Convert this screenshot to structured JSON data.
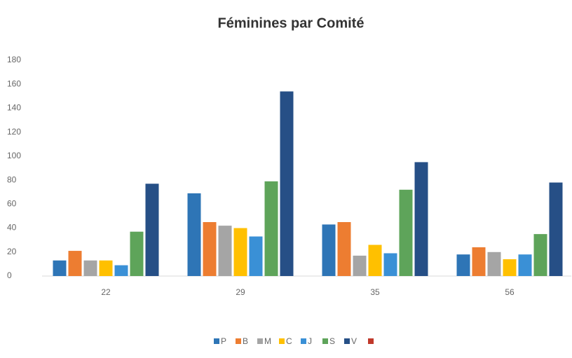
{
  "chart_data": {
    "type": "bar",
    "title": "Féminines par Comité",
    "categories": [
      "22",
      "29",
      "35",
      "56"
    ],
    "series": [
      {
        "name": "P",
        "color": "#2e75b6",
        "values": [
          13,
          69,
          43,
          18
        ]
      },
      {
        "name": "B",
        "color": "#ed7d31",
        "values": [
          21,
          45,
          45,
          24
        ]
      },
      {
        "name": "M",
        "color": "#a5a5a5",
        "values": [
          13,
          42,
          17,
          20
        ]
      },
      {
        "name": "C",
        "color": "#ffc000",
        "values": [
          13,
          40,
          26,
          14
        ]
      },
      {
        "name": "J",
        "color": "#3a90d6",
        "values": [
          9,
          33,
          19,
          18
        ]
      },
      {
        "name": "S",
        "color": "#5ea45a",
        "values": [
          37,
          79,
          72,
          35
        ]
      },
      {
        "name": "V",
        "color": "#264f86",
        "values": [
          77,
          154,
          95,
          78
        ]
      }
    ],
    "ylim": [
      0,
      180
    ],
    "yticks": [
      0,
      20,
      40,
      60,
      80,
      100,
      120,
      140,
      160,
      180
    ],
    "grid": false
  }
}
